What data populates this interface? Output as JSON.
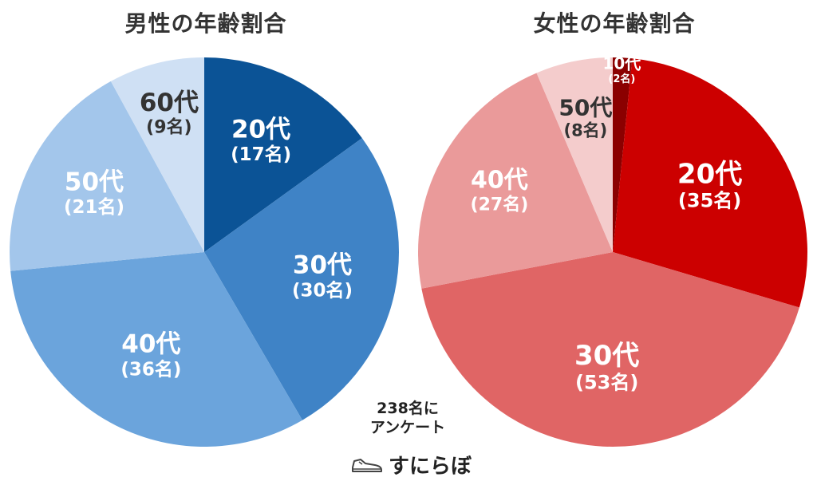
{
  "colors": {
    "male": [
      "#0b5396",
      "#3f83c6",
      "#6ba4dc",
      "#a3c6eb",
      "#cfe0f4"
    ],
    "female": [
      "#8b0000",
      "#cc0000",
      "#e06565",
      "#ea9a9a",
      "#f4cccc"
    ],
    "text_dark": "#333333",
    "text_light": "#ffffff"
  },
  "chart_data": [
    {
      "type": "pie",
      "title": "男性の年齢割合",
      "series": [
        {
          "categories": [
            "20代",
            "30代",
            "40代",
            "50代",
            "60代"
          ],
          "values": [
            17,
            30,
            36,
            21,
            9
          ],
          "value_labels": [
            "(17名)",
            "(30名)",
            "(36名)",
            "(21名)",
            "(9名)"
          ]
        }
      ],
      "start": "12 o'clock",
      "direction": "clockwise"
    },
    {
      "type": "pie",
      "title": "女性の年齢割合",
      "series": [
        {
          "categories": [
            "10代",
            "20代",
            "30代",
            "40代",
            "50代"
          ],
          "values": [
            2,
            35,
            53,
            27,
            8
          ],
          "value_labels": [
            "(2名)",
            "(35名)",
            "(53名)",
            "(27名)",
            "(8名)"
          ]
        }
      ],
      "start": "12 o'clock",
      "direction": "clockwise"
    }
  ],
  "annotation": {
    "line1": "238名に",
    "line2": "アンケート"
  },
  "logo": {
    "icon": "sneaker-icon",
    "text": "すにらぼ"
  }
}
